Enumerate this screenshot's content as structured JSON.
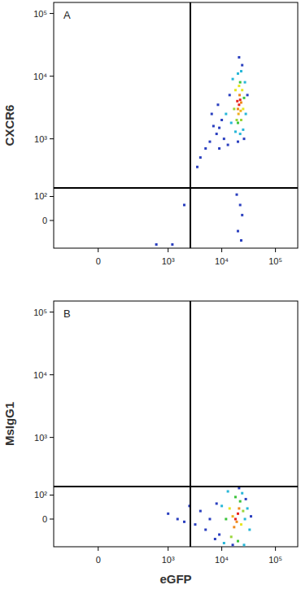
{
  "chart_data": [
    {
      "type": "scatter",
      "annotation": "A",
      "y_label": "CXCR6",
      "log": true,
      "xlim": [
        -330,
        260000
      ],
      "ylim": [
        -120,
        150000
      ],
      "xticks": [
        0,
        {
          "value": 1000,
          "label": "10³"
        },
        {
          "value": 10000,
          "label": "10⁴"
        },
        {
          "value": 100000,
          "label": "10⁵"
        }
      ],
      "yticks": [
        0,
        {
          "value": 100,
          "label": "10²"
        },
        {
          "value": 1000,
          "label": "10³"
        },
        {
          "value": 10000,
          "label": "10⁴"
        },
        {
          "value": 100000,
          "label": "10⁵"
        }
      ],
      "quadrant_x": 2600,
      "quadrant_y": 150,
      "x": [
        21000,
        22000,
        20000,
        23000,
        21500,
        19500,
        22500,
        20500,
        18000,
        24000,
        21000,
        25000,
        17000,
        19000,
        23000,
        22000,
        20000,
        26000,
        16000,
        20000,
        23000,
        27000,
        28000,
        15000,
        18000,
        22000,
        25000,
        24000,
        21000,
        14000,
        30000,
        26000,
        20000,
        12000,
        10000,
        9000,
        8000,
        7000,
        6000,
        5000,
        4000,
        3500,
        11000,
        9000,
        13000,
        6500,
        8500,
        22000,
        20000,
        24000,
        19000,
        23000,
        1200,
        2000,
        600
      ],
      "values": [
        3500,
        4200,
        3000,
        3800,
        5000,
        4000,
        2800,
        2500,
        6000,
        6000,
        7000,
        3000,
        3000,
        2000,
        2000,
        8000,
        1800,
        4500,
        9000,
        11000,
        12000,
        8000,
        2500,
        1800,
        1300,
        1200,
        1400,
        15000,
        20000,
        5000,
        5000,
        1000,
        900,
        2500,
        2000,
        1500,
        1200,
        1600,
        900,
        700,
        500,
        350,
        1000,
        700,
        800,
        2500,
        3500,
        60,
        -40,
        20,
        110,
        -80,
        -100,
        60,
        -100
      ],
      "colors": [
        "#e8231f",
        "#e8231f",
        "#f08a1c",
        "#f08a1c",
        "#f08a1c",
        "#e8231f",
        "#f0b01c",
        "#f0b01c",
        "#e6e622",
        "#e6e622",
        "#e6e622",
        "#e6e622",
        "#9ad63a",
        "#9ad63a",
        "#9ad63a",
        "#3cc43c",
        "#3cc43c",
        "#3cc43c",
        "#27b7d8",
        "#27b7d8",
        "#27b7d8",
        "#27b7d8",
        "#27b7d8",
        "#27b7d8",
        "#27b7d8",
        "#27b7d8",
        "#27b7d8",
        "#2a3fbf",
        "#2a3fbf",
        "#2a3fbf",
        "#2a3fbf",
        "#2a3fbf",
        "#2a3fbf",
        "#27b7d8",
        "#2a3fbf",
        "#2a3fbf",
        "#2a3fbf",
        "#2a3fbf",
        "#2a3fbf",
        "#2a3fbf",
        "#2a3fbf",
        "#2a3fbf",
        "#2a3fbf",
        "#2a3fbf",
        "#2a3fbf",
        "#2a3fbf",
        "#2a3fbf",
        "#2a3fbf",
        "#2a3fbf",
        "#2a3fbf",
        "#2a3fbf",
        "#2a3fbf",
        "#2a3fbf",
        "#2a3fbf",
        "#2a3fbf"
      ]
    },
    {
      "type": "scatter",
      "annotation": "B",
      "y_label": "MsIgG1",
      "x_label": "eGFP",
      "log": true,
      "xlim": [
        -330,
        260000
      ],
      "ylim": [
        -120,
        150000
      ],
      "xticks": [
        0,
        {
          "value": 1000,
          "label": "10³"
        },
        {
          "value": 10000,
          "label": "10⁴"
        },
        {
          "value": 100000,
          "label": "10⁵"
        }
      ],
      "yticks": [
        0,
        {
          "value": 100,
          "label": "10²"
        },
        {
          "value": 1000,
          "label": "10³"
        },
        {
          "value": 10000,
          "label": "10⁴"
        },
        {
          "value": 100000,
          "label": "10⁵"
        }
      ],
      "quadrant_x": 2600,
      "quadrant_y": 150,
      "x": [
        18000,
        20000,
        17000,
        19000,
        21000,
        16000,
        14000,
        23000,
        25000,
        15000,
        22000,
        18000,
        20000,
        12000,
        27000,
        10000,
        30000,
        33000,
        11000,
        26000,
        24000,
        13000,
        9000,
        35000,
        28000,
        16000,
        21000,
        6000,
        5000,
        4000,
        3200,
        2500,
        2000,
        1500,
        1000,
        7500,
        8000
      ],
      "values": [
        0,
        20,
        -30,
        -10,
        40,
        10,
        40,
        -20,
        30,
        -70,
        70,
        90,
        -90,
        0,
        0,
        50,
        40,
        -40,
        -100,
        -110,
        110,
        120,
        -60,
        10,
        80,
        -110,
        140,
        0,
        -40,
        30,
        -20,
        50,
        -10,
        0,
        20,
        -80,
        60
      ],
      "colors": [
        "#e8231f",
        "#e8231f",
        "#f08a1c",
        "#f08a1c",
        "#f08a1c",
        "#f0b01c",
        "#e6e622",
        "#e6e622",
        "#9ad63a",
        "#9ad63a",
        "#3cc43c",
        "#3cc43c",
        "#3cc43c",
        "#3cc43c",
        "#27b7d8",
        "#27b7d8",
        "#27b7d8",
        "#27b7d8",
        "#27b7d8",
        "#27b7d8",
        "#27b7d8",
        "#27b7d8",
        "#2a3fbf",
        "#2a3fbf",
        "#2a3fbf",
        "#2a3fbf",
        "#2a3fbf",
        "#2a3fbf",
        "#2a3fbf",
        "#2a3fbf",
        "#2a3fbf",
        "#2a3fbf",
        "#2a3fbf",
        "#2a3fbf",
        "#2a3fbf",
        "#2a3fbf",
        "#2a3fbf"
      ]
    }
  ]
}
